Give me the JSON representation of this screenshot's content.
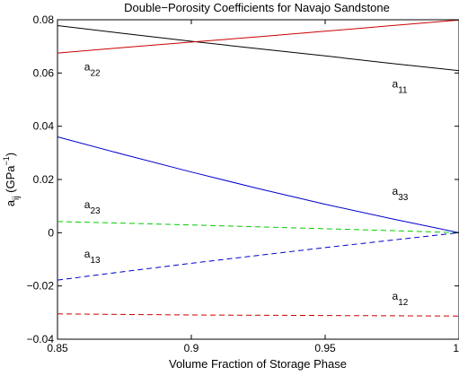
{
  "chart_data": {
    "type": "line",
    "title": "Double−Porosity Coefficients for Navajo Sandstone",
    "xlabel": "Volume Fraction of Storage Phase",
    "ylabel": {
      "base": "a",
      "sub": "ij",
      "unit_open": " (GPa",
      "unit_sup": "−1",
      "unit_close": ")"
    },
    "xlim": [
      0.85,
      1.0
    ],
    "ylim": [
      -0.04,
      0.08
    ],
    "xticks": [
      {
        "value": 0.85,
        "label": "0.85"
      },
      {
        "value": 0.9,
        "label": "0.9"
      },
      {
        "value": 0.95,
        "label": "0.95"
      },
      {
        "value": 1.0,
        "label": "1"
      }
    ],
    "yticks": [
      {
        "value": -0.04,
        "label": "−0.04"
      },
      {
        "value": -0.02,
        "label": "−0.02"
      },
      {
        "value": 0,
        "label": "0"
      },
      {
        "value": 0.02,
        "label": "0.02"
      },
      {
        "value": 0.04,
        "label": "0.04"
      },
      {
        "value": 0.06,
        "label": "0.06"
      },
      {
        "value": 0.08,
        "label": "0.08"
      }
    ],
    "grid": false,
    "series": [
      {
        "name": "a11",
        "color": "#000000",
        "dashed": false,
        "x": [
          0.85,
          0.875,
          0.9,
          0.925,
          0.95,
          0.975,
          1.0
        ],
        "y": [
          0.0778,
          0.0748,
          0.0719,
          0.0691,
          0.0664,
          0.0636,
          0.0609
        ]
      },
      {
        "name": "a22",
        "color": "#cc0000",
        "dashed": false,
        "x": [
          0.85,
          0.875,
          0.9,
          0.925,
          0.95,
          0.975,
          1.0
        ],
        "y": [
          0.0675,
          0.0696,
          0.0716,
          0.0736,
          0.0757,
          0.0778,
          0.0799
        ]
      },
      {
        "name": "a33",
        "color": "#0000cc",
        "dashed": false,
        "x": [
          0.85,
          0.875,
          0.9,
          0.925,
          0.95,
          0.975,
          1.0
        ],
        "y": [
          0.036,
          0.0293,
          0.0228,
          0.0166,
          0.0107,
          0.0052,
          0.0
        ]
      },
      {
        "name": "a23",
        "color": "#00cc00",
        "dashed": true,
        "x": [
          0.85,
          0.875,
          0.9,
          0.925,
          0.95,
          0.975,
          1.0
        ],
        "y": [
          0.0042,
          0.0036,
          0.0029,
          0.0022,
          0.0015,
          0.0008,
          0.0
        ]
      },
      {
        "name": "a13",
        "color": "#0000cc",
        "dashed": true,
        "x": [
          0.85,
          0.875,
          0.9,
          0.925,
          0.95,
          0.975,
          1.0
        ],
        "y": [
          -0.0178,
          -0.0146,
          -0.0115,
          -0.0085,
          -0.0056,
          -0.0028,
          0.0
        ]
      },
      {
        "name": "a12",
        "color": "#cc0000",
        "dashed": true,
        "x": [
          0.85,
          0.875,
          0.9,
          0.925,
          0.95,
          0.975,
          1.0
        ],
        "y": [
          -0.0305,
          -0.0307,
          -0.0309,
          -0.031,
          -0.0311,
          -0.0312,
          -0.0313
        ]
      }
    ],
    "annotations": [
      {
        "base": "a",
        "sub": "22",
        "x": 0.86,
        "y": 0.061
      },
      {
        "base": "a",
        "sub": "11",
        "x": 0.975,
        "y": 0.0545
      },
      {
        "base": "a",
        "sub": "33",
        "x": 0.975,
        "y": 0.0142
      },
      {
        "base": "a",
        "sub": "23",
        "x": 0.86,
        "y": 0.0092
      },
      {
        "base": "a",
        "sub": "13",
        "x": 0.86,
        "y": -0.0093
      },
      {
        "base": "a",
        "sub": "12",
        "x": 0.975,
        "y": -0.0252
      }
    ]
  }
}
